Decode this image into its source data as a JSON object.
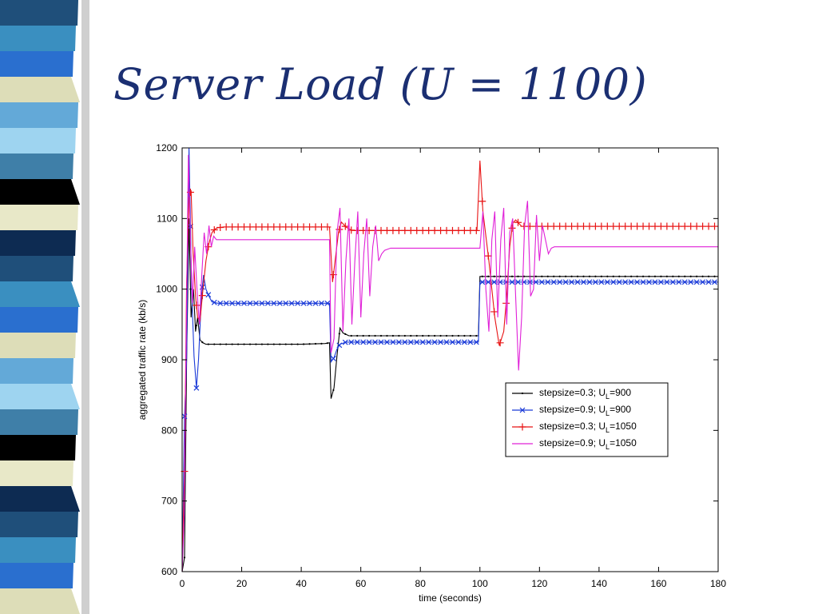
{
  "slide": {
    "title": "Server Load (U = 1100)",
    "stripe_colors": [
      "#3a8fc0",
      "#63a9d8",
      "#000000",
      "#1f4f7a",
      "#ddddb8",
      "#3f7fa8",
      "#0d2b52",
      "#2a6fcf",
      "#9ed4f0",
      "#e8e8c8"
    ]
  },
  "chart_data": {
    "type": "line",
    "title": "",
    "xlabel": "time (seconds)",
    "ylabel": "aggregated traffic rate (kb/s)",
    "xlim": [
      0,
      180
    ],
    "ylim": [
      600,
      1200
    ],
    "xticks": [
      0,
      20,
      40,
      60,
      80,
      100,
      120,
      140,
      160,
      180
    ],
    "yticks": [
      600,
      700,
      800,
      900,
      1000,
      1100,
      1200
    ],
    "grid": false,
    "legend_position": "lower-right",
    "series": [
      {
        "name_parts": [
          "stepsize=0.3; U",
          "L",
          "=900"
        ],
        "color": "#000000",
        "marker": "dot",
        "points": [
          [
            0,
            600
          ],
          [
            0.8,
            620
          ],
          [
            1.5,
            900
          ],
          [
            2.3,
            1100
          ],
          [
            3,
            960
          ],
          [
            3.8,
            1000
          ],
          [
            4.5,
            940
          ],
          [
            5.2,
            960
          ],
          [
            6,
            928
          ],
          [
            7,
            924
          ],
          [
            8,
            922
          ],
          [
            10,
            922
          ],
          [
            15,
            922
          ],
          [
            20,
            922
          ],
          [
            30,
            922
          ],
          [
            40,
            922
          ],
          [
            48,
            923
          ],
          [
            49.5,
            924
          ],
          [
            50,
            845
          ],
          [
            51,
            860
          ],
          [
            52,
            905
          ],
          [
            53,
            945
          ],
          [
            54,
            938
          ],
          [
            56,
            934
          ],
          [
            60,
            934
          ],
          [
            70,
            934
          ],
          [
            80,
            934
          ],
          [
            90,
            934
          ],
          [
            99.5,
            934
          ],
          [
            100,
            1018
          ],
          [
            110,
            1018
          ],
          [
            120,
            1018
          ],
          [
            140,
            1018
          ],
          [
            160,
            1018
          ],
          [
            180,
            1018
          ]
        ]
      },
      {
        "name_parts": [
          "stepsize=0.9; U",
          "L",
          "=900"
        ],
        "color": "#1a3ad8",
        "marker": "x",
        "points": [
          [
            0,
            600
          ],
          [
            0.8,
            820
          ],
          [
            1.5,
            900
          ],
          [
            2.3,
            1200
          ],
          [
            3.2,
            1000
          ],
          [
            4,
            905
          ],
          [
            4.8,
            860
          ],
          [
            5.5,
            900
          ],
          [
            6.5,
            990
          ],
          [
            7.2,
            1020
          ],
          [
            8,
            1000
          ],
          [
            9,
            990
          ],
          [
            10,
            982
          ],
          [
            12,
            980
          ],
          [
            20,
            980
          ],
          [
            30,
            980
          ],
          [
            40,
            980
          ],
          [
            49.5,
            980
          ],
          [
            50,
            897
          ],
          [
            51,
            903
          ],
          [
            52,
            915
          ],
          [
            53,
            922
          ],
          [
            55,
            925
          ],
          [
            60,
            925
          ],
          [
            80,
            925
          ],
          [
            99.5,
            925
          ],
          [
            100,
            1010
          ],
          [
            120,
            1010
          ],
          [
            140,
            1010
          ],
          [
            160,
            1010
          ],
          [
            180,
            1010
          ]
        ]
      },
      {
        "name_parts": [
          "stepsize=0.3; U",
          "L",
          "=1050"
        ],
        "color": "#e81414",
        "marker": "plus",
        "points": [
          [
            0,
            600
          ],
          [
            0.8,
            742
          ],
          [
            1.5,
            1010
          ],
          [
            2.3,
            1130
          ],
          [
            3,
            1140
          ],
          [
            3.7,
            1050
          ],
          [
            4.5,
            990
          ],
          [
            5.2,
            960
          ],
          [
            6,
            955
          ],
          [
            7,
            1000
          ],
          [
            8,
            1040
          ],
          [
            9,
            1065
          ],
          [
            10,
            1080
          ],
          [
            11,
            1085
          ],
          [
            12,
            1087
          ],
          [
            14,
            1088
          ],
          [
            20,
            1088
          ],
          [
            30,
            1088
          ],
          [
            40,
            1088
          ],
          [
            49.5,
            1088
          ],
          [
            50.5,
            1010
          ],
          [
            51.5,
            1045
          ],
          [
            52.5,
            1080
          ],
          [
            53.5,
            1095
          ],
          [
            55,
            1088
          ],
          [
            57,
            1083
          ],
          [
            60,
            1083
          ],
          [
            80,
            1083
          ],
          [
            99,
            1083
          ],
          [
            100,
            1182
          ],
          [
            101,
            1110
          ],
          [
            103,
            1040
          ],
          [
            105,
            960
          ],
          [
            106.5,
            920
          ],
          [
            108,
            940
          ],
          [
            109,
            990
          ],
          [
            110,
            1060
          ],
          [
            111,
            1093
          ],
          [
            112,
            1098
          ],
          [
            114,
            1089
          ],
          [
            120,
            1089
          ],
          [
            140,
            1089
          ],
          [
            160,
            1089
          ],
          [
            180,
            1089
          ]
        ]
      },
      {
        "name_parts": [
          "stepsize=0.9; U",
          "L",
          "=1050"
        ],
        "color": "#e020d8",
        "marker": "none",
        "points": [
          [
            0,
            600
          ],
          [
            0.7,
            680
          ],
          [
            1.4,
            940
          ],
          [
            2.1,
            1190
          ],
          [
            2.8,
            1070
          ],
          [
            3.5,
            980
          ],
          [
            4.2,
            1060
          ],
          [
            5,
            1000
          ],
          [
            5.8,
            950
          ],
          [
            6.6,
            1020
          ],
          [
            7.4,
            1080
          ],
          [
            8.2,
            1050
          ],
          [
            9,
            1090
          ],
          [
            9.8,
            1060
          ],
          [
            10.6,
            1075
          ],
          [
            11.5,
            1070
          ],
          [
            12.5,
            1070
          ],
          [
            20,
            1070
          ],
          [
            30,
            1070
          ],
          [
            40,
            1070
          ],
          [
            49.5,
            1070
          ],
          [
            50,
            910
          ],
          [
            51,
            930
          ],
          [
            52,
            1080
          ],
          [
            53,
            1115
          ],
          [
            54,
            940
          ],
          [
            55,
            1040
          ],
          [
            56,
            1100
          ],
          [
            57,
            950
          ],
          [
            58,
            1040
          ],
          [
            59,
            1110
          ],
          [
            60,
            960
          ],
          [
            61,
            1050
          ],
          [
            62,
            1100
          ],
          [
            63,
            990
          ],
          [
            64,
            1060
          ],
          [
            65,
            1090
          ],
          [
            66,
            1040
          ],
          [
            67,
            1050
          ],
          [
            68,
            1055
          ],
          [
            70,
            1058
          ],
          [
            80,
            1058
          ],
          [
            90,
            1058
          ],
          [
            99.5,
            1058
          ],
          [
            100,
            1058
          ],
          [
            101,
            1110
          ],
          [
            102,
            1000
          ],
          [
            103,
            940
          ],
          [
            104,
            1070
          ],
          [
            105,
            1110
          ],
          [
            106,
            960
          ],
          [
            107,
            1070
          ],
          [
            108,
            1115
          ],
          [
            109,
            950
          ],
          [
            110,
            1080
          ],
          [
            111,
            1100
          ],
          [
            112,
            990
          ],
          [
            113,
            885
          ],
          [
            114,
            960
          ],
          [
            115,
            1090
          ],
          [
            116,
            1125
          ],
          [
            117,
            990
          ],
          [
            118,
            1000
          ],
          [
            119,
            1105
          ],
          [
            120,
            1040
          ],
          [
            121,
            1090
          ],
          [
            122,
            1070
          ],
          [
            123,
            1050
          ],
          [
            124,
            1058
          ],
          [
            125,
            1060
          ],
          [
            130,
            1060
          ],
          [
            150,
            1060
          ],
          [
            180,
            1060
          ]
        ]
      }
    ]
  }
}
